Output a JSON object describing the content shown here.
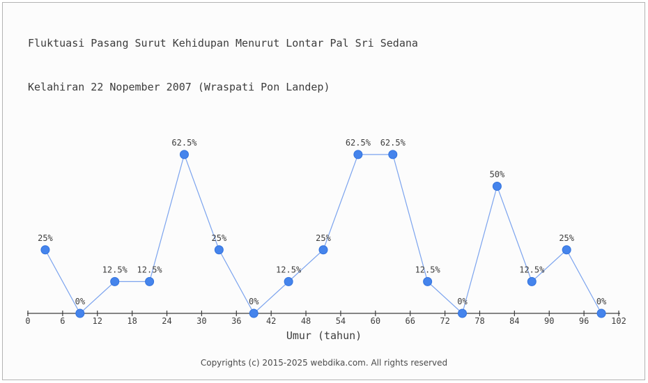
{
  "header": {
    "title_line1": "Fluktuasi Pasang Surut Kehidupan Menurut Lontar Pal Sri Sedana",
    "title_line2": "Kelahiran 22 Nopember 2007 (Wraspati Pon Landep)"
  },
  "chart_data": {
    "type": "line",
    "title": "Fluktuasi Pasang Surut Kehidupan Menurut Lontar Pal Sri Sedana Kelahiran 22 Nopember 2007 (Wraspati Pon Landep)",
    "xlabel": "Umur (tahun)",
    "ylabel": "",
    "x": [
      3,
      9,
      15,
      21,
      27,
      33,
      39,
      45,
      51,
      57,
      63,
      69,
      75,
      81,
      87,
      93,
      99
    ],
    "values": [
      25,
      0,
      12.5,
      12.5,
      62.5,
      25,
      0,
      12.5,
      25,
      62.5,
      62.5,
      12.5,
      0,
      50,
      12.5,
      25,
      0
    ],
    "point_labels": [
      "25%",
      "0%",
      "12.5%",
      "12.5%",
      "62.5%",
      "25%",
      "0%",
      "12.5%",
      "25%",
      "62.5%",
      "62.5%",
      "12.5%",
      "0%",
      "50%",
      "12.5%",
      "25%",
      "0%"
    ],
    "x_ticks": [
      0,
      6,
      12,
      18,
      24,
      30,
      36,
      42,
      48,
      54,
      60,
      66,
      72,
      78,
      84,
      90,
      96,
      102
    ],
    "xlim": [
      0,
      102
    ],
    "ylim": [
      0,
      100
    ],
    "grid": false,
    "legend": "none",
    "colors": {
      "marker": "#4584ec",
      "marker_edge": "#3272dd",
      "line": "#7ba3ee",
      "axis": "#3c3c3c",
      "text": "#3c3c3c",
      "background": "#fcfcfc",
      "border": "#b3b3b3"
    }
  },
  "footer": {
    "copyright": "Copyrights (c) 2015-2025 webdika.com. All rights reserved"
  }
}
